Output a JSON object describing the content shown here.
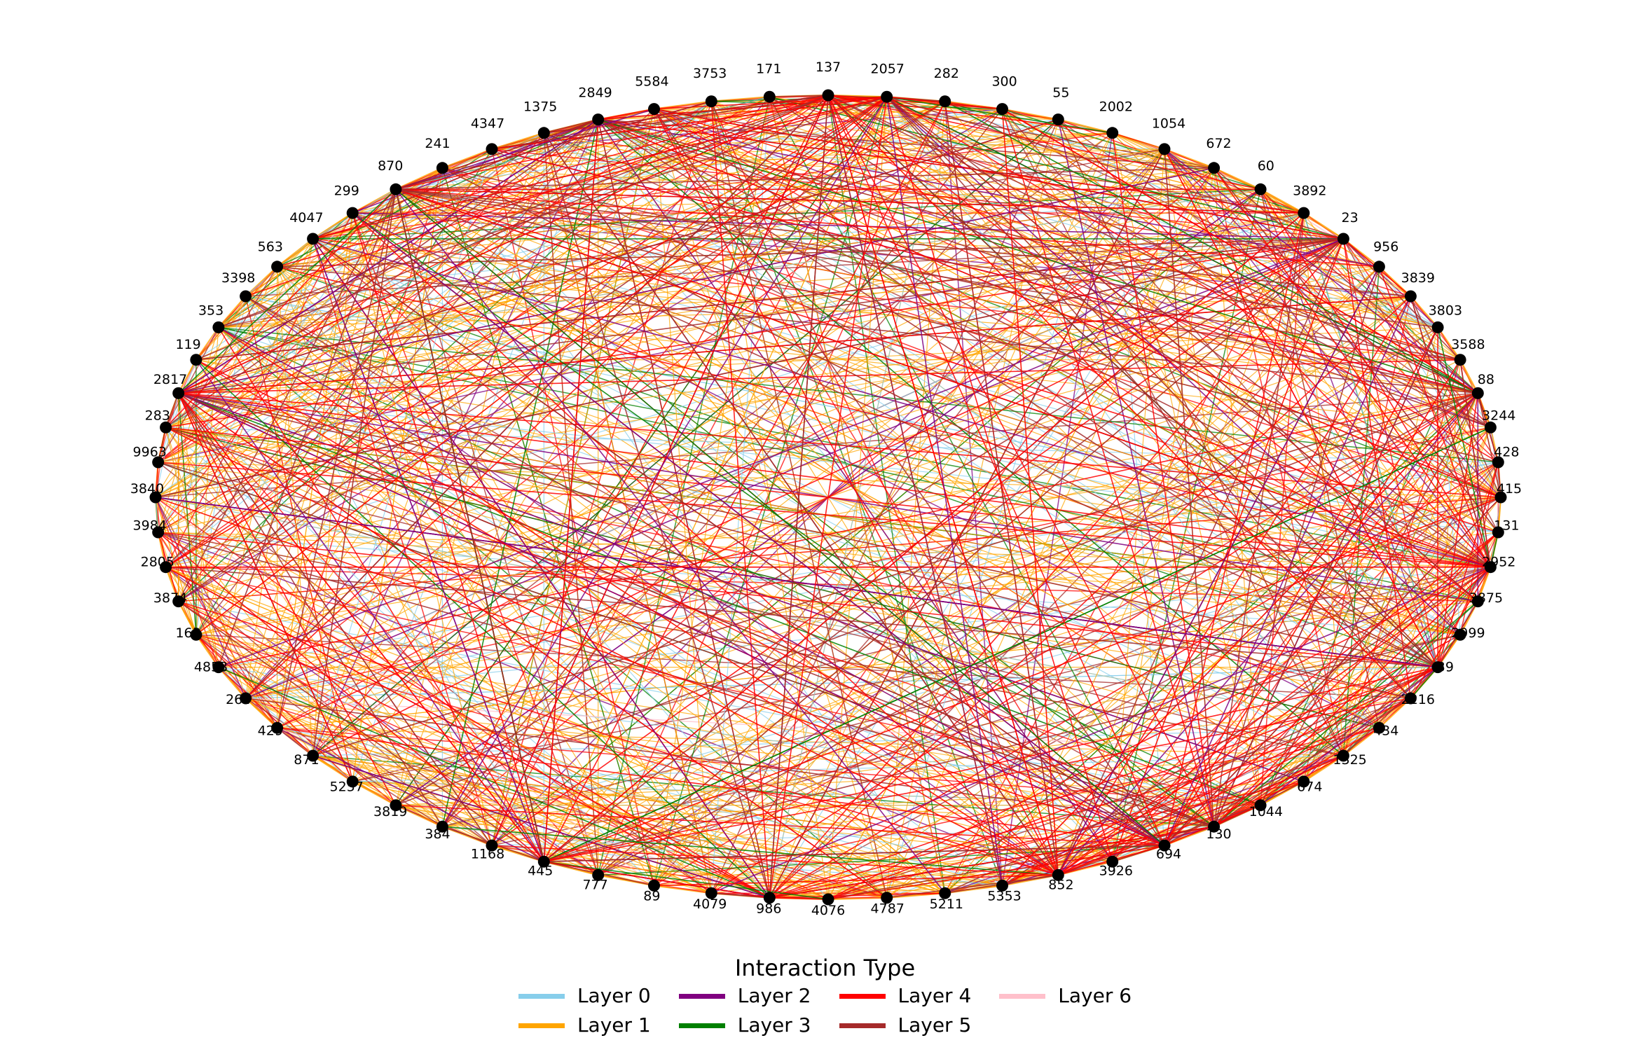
{
  "legend": {
    "title": "Interaction Type",
    "items": [
      {
        "label": "Layer 0",
        "color": "#87CEEB"
      },
      {
        "label": "Layer 1",
        "color": "#FFA500"
      },
      {
        "label": "Layer 2",
        "color": "#800080"
      },
      {
        "label": "Layer 3",
        "color": "#008000"
      },
      {
        "label": "Layer 4",
        "color": "#FF0000"
      },
      {
        "label": "Layer 5",
        "color": "#A52A2A"
      },
      {
        "label": "Layer 6",
        "color": "#FFC0CB"
      }
    ]
  },
  "nodes": [
    "137",
    "2057",
    "282",
    "300",
    "55",
    "2002",
    "1054",
    "672",
    "60",
    "3892",
    "23",
    "956",
    "3839",
    "3803",
    "3588",
    "88",
    "3244",
    "428",
    "415",
    "131",
    "2952",
    "3875",
    "2999",
    "39",
    "2216",
    "434",
    "1325",
    "674",
    "1044",
    "130",
    "694",
    "3926",
    "852",
    "5353",
    "5211",
    "4787",
    "4076",
    "986",
    "4079",
    "89",
    "777",
    "445",
    "1168",
    "384",
    "3819",
    "5257",
    "871",
    "429",
    "264",
    "4853",
    "163",
    "3874",
    "2805",
    "3984",
    "3840",
    "9963",
    "283",
    "2817",
    "119",
    "353",
    "3398",
    "563",
    "4047",
    "299",
    "870",
    "241",
    "4347",
    "1375",
    "2849",
    "5584",
    "3753",
    "171"
  ],
  "hubs": [
    "2849",
    "23",
    "2817",
    "986",
    "130",
    "39",
    "88",
    "2952",
    "445",
    "852",
    "694",
    "137",
    "2057",
    "870"
  ]
}
